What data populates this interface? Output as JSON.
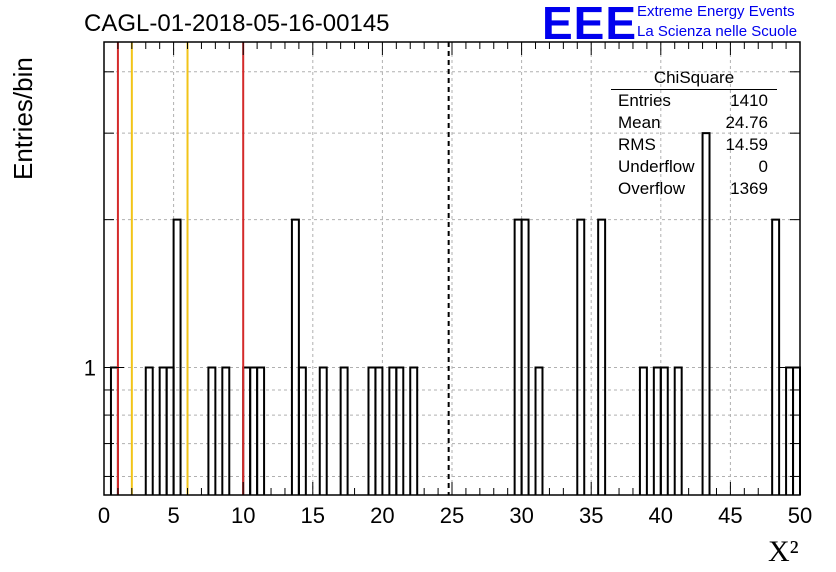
{
  "run_title": "CAGL-01-2018-05-16-00145",
  "logo": {
    "mark": "EEE",
    "line1": "Extreme Energy Events",
    "line2": "La Scienza nelle Scuole",
    "color": "#0000ee"
  },
  "stats_box": {
    "title": "ChiSquare",
    "rows": [
      {
        "label": "Entries",
        "value": "1410"
      },
      {
        "label": "Mean",
        "value": "24.76"
      },
      {
        "label": "RMS",
        "value": "14.59"
      },
      {
        "label": "Underflow",
        "value": "0"
      },
      {
        "label": "Overflow",
        "value": "1369"
      }
    ]
  },
  "chart_data": {
    "type": "histogram",
    "xlabel": "X²",
    "ylabel": "Entries/bin",
    "xlim": [
      0,
      50
    ],
    "ylim": [
      0.55,
      4.6
    ],
    "y_scale": "log",
    "bin_width": 0.5,
    "grid": true,
    "x_ticks": [
      0,
      5,
      10,
      15,
      20,
      25,
      30,
      35,
      40,
      45,
      50
    ],
    "y_ticks": [
      1
    ],
    "bins": [
      {
        "x": 0.5,
        "y": 1
      },
      {
        "x": 3.0,
        "y": 1
      },
      {
        "x": 4.0,
        "y": 1
      },
      {
        "x": 4.5,
        "y": 1
      },
      {
        "x": 5.0,
        "y": 2
      },
      {
        "x": 7.5,
        "y": 1
      },
      {
        "x": 8.5,
        "y": 1
      },
      {
        "x": 10.0,
        "y": 1
      },
      {
        "x": 10.5,
        "y": 1
      },
      {
        "x": 11.0,
        "y": 1
      },
      {
        "x": 13.5,
        "y": 2
      },
      {
        "x": 14.0,
        "y": 1
      },
      {
        "x": 15.5,
        "y": 1
      },
      {
        "x": 17.0,
        "y": 1
      },
      {
        "x": 19.0,
        "y": 1
      },
      {
        "x": 19.5,
        "y": 1
      },
      {
        "x": 20.5,
        "y": 1
      },
      {
        "x": 21.0,
        "y": 1
      },
      {
        "x": 22.0,
        "y": 1
      },
      {
        "x": 29.5,
        "y": 2
      },
      {
        "x": 30.0,
        "y": 2
      },
      {
        "x": 31.0,
        "y": 1
      },
      {
        "x": 34.0,
        "y": 2
      },
      {
        "x": 35.5,
        "y": 2
      },
      {
        "x": 38.5,
        "y": 1
      },
      {
        "x": 39.5,
        "y": 1
      },
      {
        "x": 40.0,
        "y": 1
      },
      {
        "x": 41.0,
        "y": 1
      },
      {
        "x": 43.0,
        "y": 3
      },
      {
        "x": 48.0,
        "y": 2
      },
      {
        "x": 49.0,
        "y": 1
      },
      {
        "x": 49.5,
        "y": 1
      }
    ],
    "reference_lines": [
      {
        "x": 1,
        "color": "#d42a2a",
        "style": "solid"
      },
      {
        "x": 2,
        "color": "#f2c418",
        "style": "solid"
      },
      {
        "x": 6,
        "color": "#f2c418",
        "style": "solid"
      },
      {
        "x": 10,
        "color": "#d42a2a",
        "style": "solid"
      },
      {
        "x": 24.76,
        "color": "#000000",
        "style": "dashed"
      }
    ]
  }
}
